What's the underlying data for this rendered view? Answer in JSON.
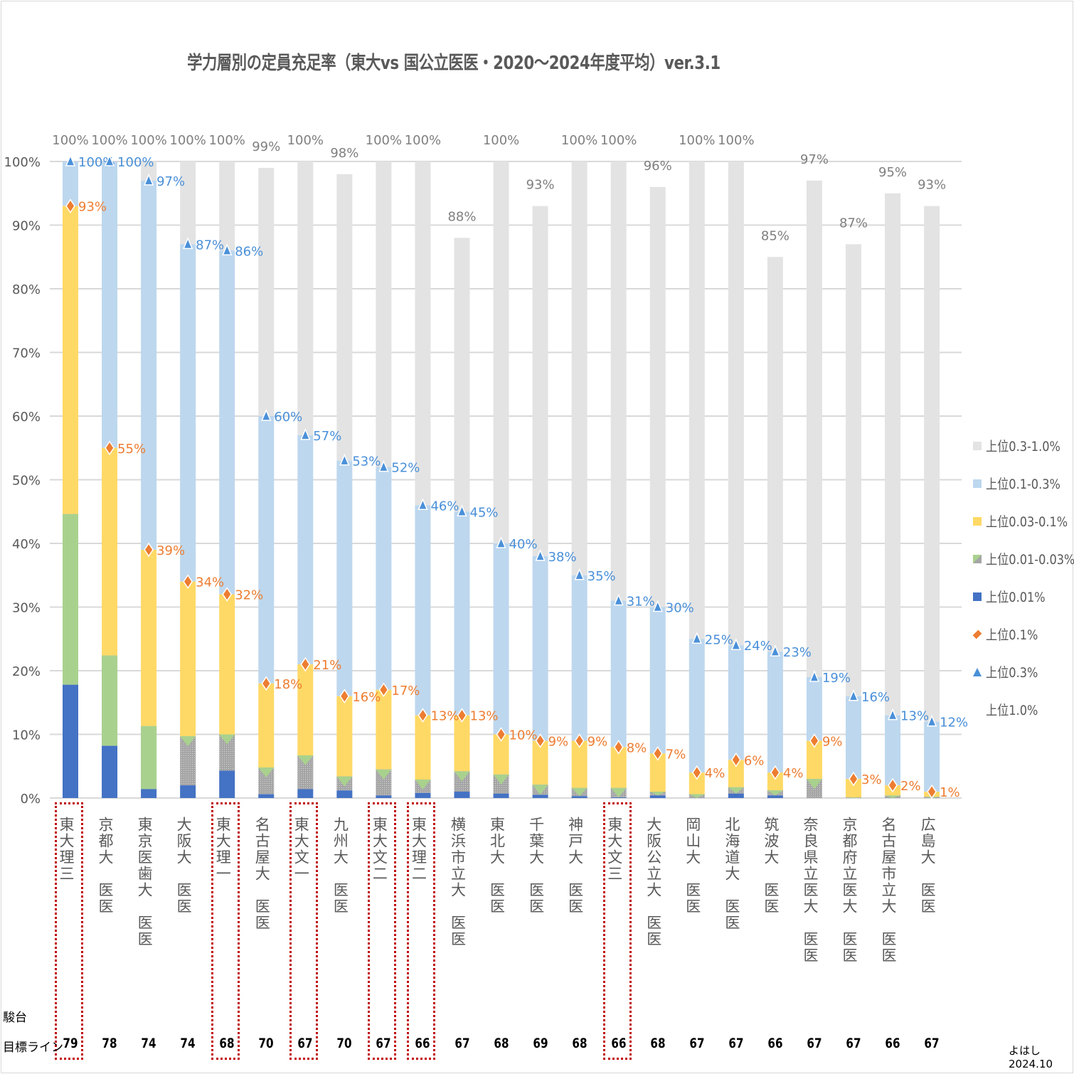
{
  "title": "学力層別の定員充足率（東大vs 国公立医医・2020〜2024年度平均）ver.3.1",
  "legend": [
    {
      "label": "上位0.3-1.0%",
      "color": "#e3e3e3",
      "shape": "square"
    },
    {
      "label": "上位0.1-0.3%",
      "color": "#bdd7ee",
      "shape": "square"
    },
    {
      "label": "上位0.03-0.1%",
      "color": "#ffd966",
      "shape": "square"
    },
    {
      "label": "上位0.01-0.03%",
      "color": "#a9d18e",
      "shape": "square-hatched"
    },
    {
      "label": "上位0.01%",
      "color": "#4472c4",
      "shape": "square"
    },
    {
      "label": "上位0.1%",
      "color": "#ed7d31",
      "shape": "diamond"
    },
    {
      "label": "上位0.3%",
      "color": "#4a90d9",
      "shape": "triangle"
    },
    {
      "label": "上位1.0%",
      "color": "",
      "shape": "none"
    }
  ],
  "row_labels": {
    "sundai": "駿台",
    "target": "目標ライン"
  },
  "credit": "よはし 2024.10",
  "chart_data": {
    "type": "bar",
    "stacked": true,
    "title": "学力層別の定員充足率（東大vs 国公立医医・2020〜2024年度平均）ver.3.1",
    "xlabel": "",
    "ylabel": "",
    "ylim": [
      0,
      100
    ],
    "yticks": [
      "0%",
      "10%",
      "20%",
      "30%",
      "40%",
      "50%",
      "60%",
      "70%",
      "80%",
      "90%",
      "100%"
    ],
    "grid": true,
    "legend_position": "right",
    "categories": [
      "東大理三",
      "京都大 医医",
      "東京医歯大 医医",
      "大阪大 医医",
      "東大理一",
      "名古屋大 医医",
      "東大文一",
      "九州大 医医",
      "東大文二",
      "東大理二",
      "横浜市立大 医医",
      "東北大 医医",
      "千葉大 医医",
      "神戸大 医医",
      "東大文三",
      "大阪公立大 医医",
      "岡山大 医医",
      "北海道大 医医",
      "筑波大 医医",
      "奈良県立医大 医医",
      "京都府立医大 医医",
      "名古屋市立大 医医",
      "広島大 医医"
    ],
    "highlighted": [
      true,
      false,
      false,
      false,
      true,
      false,
      true,
      false,
      true,
      true,
      false,
      false,
      false,
      false,
      true,
      false,
      false,
      false,
      false,
      false,
      false,
      false,
      false
    ],
    "sundai_target": [
      79,
      78,
      74,
      74,
      68,
      70,
      67,
      70,
      67,
      66,
      67,
      68,
      69,
      68,
      66,
      68,
      67,
      67,
      66,
      67,
      67,
      66,
      67
    ],
    "cumulative": {
      "top_0_01": [
        17.8,
        8.2,
        1.4,
        2.0,
        4.3,
        0.6,
        1.4,
        1.2,
        0.4,
        0.8,
        1.0,
        0.7,
        0.5,
        0.3,
        0.1,
        0.4,
        0.0,
        0.7,
        0.4,
        0.0,
        0.0,
        0.0,
        0.0
      ],
      "top_0_03": [
        44.6,
        22.4,
        11.3,
        9.7,
        10.0,
        4.8,
        6.7,
        3.4,
        4.5,
        2.9,
        4.2,
        3.7,
        2.1,
        1.6,
        1.6,
        1.0,
        0.6,
        1.7,
        1.2,
        3.0,
        0.1,
        0.4,
        0.2
      ],
      "top_0_1": [
        93,
        55,
        39,
        34,
        32,
        18,
        21,
        16,
        17,
        13,
        13,
        10,
        9,
        9,
        8,
        7,
        4,
        6,
        4,
        9,
        3,
        2,
        1
      ],
      "top_0_3": [
        100,
        100,
        97,
        87,
        86,
        60,
        57,
        53,
        52,
        46,
        45,
        40,
        38,
        35,
        31,
        30,
        25,
        24,
        23,
        19,
        16,
        13,
        12
      ],
      "top_1_0": [
        100,
        100,
        100,
        100,
        100,
        99,
        100,
        98,
        100,
        100,
        88,
        100,
        93,
        100,
        100,
        96,
        100,
        100,
        85,
        97,
        87,
        95,
        93
      ]
    },
    "series": [
      {
        "name": "上位0.01%",
        "values": [
          17.8,
          8.2,
          1.4,
          2.0,
          4.3,
          0.6,
          1.4,
          1.2,
          0.4,
          0.8,
          1.0,
          0.7,
          0.5,
          0.3,
          0.1,
          0.4,
          0.0,
          0.7,
          0.4,
          0.0,
          0.0,
          0.0,
          0.0
        ]
      },
      {
        "name": "上位0.01-0.03%",
        "values": [
          26.8,
          14.2,
          9.9,
          7.7,
          5.7,
          4.2,
          5.3,
          2.2,
          4.1,
          2.1,
          3.2,
          3.0,
          1.6,
          1.3,
          1.5,
          0.6,
          0.6,
          1.0,
          0.8,
          3.0,
          0.1,
          0.4,
          0.2
        ]
      },
      {
        "name": "上位0.03-0.1%",
        "values": [
          48.4,
          32.6,
          27.7,
          24.3,
          22.0,
          13.2,
          14.3,
          12.6,
          12.5,
          10.1,
          8.8,
          6.3,
          6.9,
          7.4,
          6.4,
          6.0,
          3.4,
          4.3,
          2.8,
          6.0,
          2.9,
          1.6,
          0.8
        ]
      },
      {
        "name": "上位0.1-0.3%",
        "values": [
          7,
          45,
          58,
          53,
          54,
          42,
          36,
          37,
          35,
          33,
          32,
          30,
          29,
          26,
          23,
          23,
          21,
          18,
          19,
          10,
          13,
          11,
          11
        ]
      },
      {
        "name": "上位0.3-1.0%",
        "values": [
          0,
          0,
          3,
          13,
          14,
          39,
          43,
          45,
          48,
          54,
          43,
          60,
          55,
          65,
          69,
          66,
          75,
          76,
          62,
          78,
          71,
          82,
          81
        ]
      },
      {
        "name": "上位0.1%",
        "type": "marker",
        "values": [
          93,
          55,
          39,
          34,
          32,
          18,
          21,
          16,
          17,
          13,
          13,
          10,
          9,
          9,
          8,
          7,
          4,
          6,
          4,
          9,
          3,
          2,
          1
        ]
      },
      {
        "name": "上位0.3%",
        "type": "marker",
        "values": [
          100,
          100,
          97,
          87,
          86,
          60,
          57,
          53,
          52,
          46,
          45,
          40,
          38,
          35,
          31,
          30,
          25,
          24,
          23,
          19,
          16,
          13,
          12
        ]
      },
      {
        "name": "上位1.0%",
        "type": "label",
        "values": [
          100,
          100,
          100,
          100,
          100,
          99,
          100,
          98,
          100,
          100,
          88,
          100,
          93,
          100,
          100,
          96,
          100,
          100,
          85,
          97,
          87,
          95,
          93
        ]
      }
    ]
  }
}
